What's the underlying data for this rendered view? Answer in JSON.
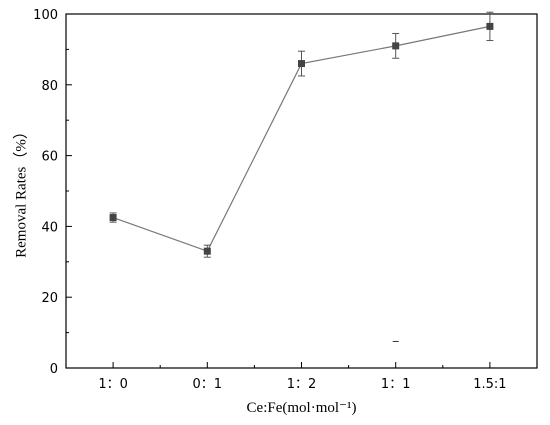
{
  "chart_data": {
    "type": "line",
    "categories": [
      "1：0",
      "0：1",
      "1：2",
      "1：1",
      "1.5:1"
    ],
    "series": [
      {
        "values": [
          42.5,
          33,
          86,
          91,
          96.5
        ],
        "errors": [
          1.3,
          1.7,
          3.5,
          3.5,
          4
        ]
      }
    ],
    "xlabel": "Ce:Fe(mol·mol⁻¹)",
    "ylabel": "Removal Rates（%）",
    "ylim": [
      0,
      100
    ],
    "yticks": [
      0,
      20,
      40,
      60,
      80,
      100
    ],
    "grid": false,
    "line_color": "#777777",
    "marker_color": "#444444",
    "axis_color": "#000000",
    "stray_mark": {
      "x_index": 3,
      "y": 7.5
    }
  }
}
